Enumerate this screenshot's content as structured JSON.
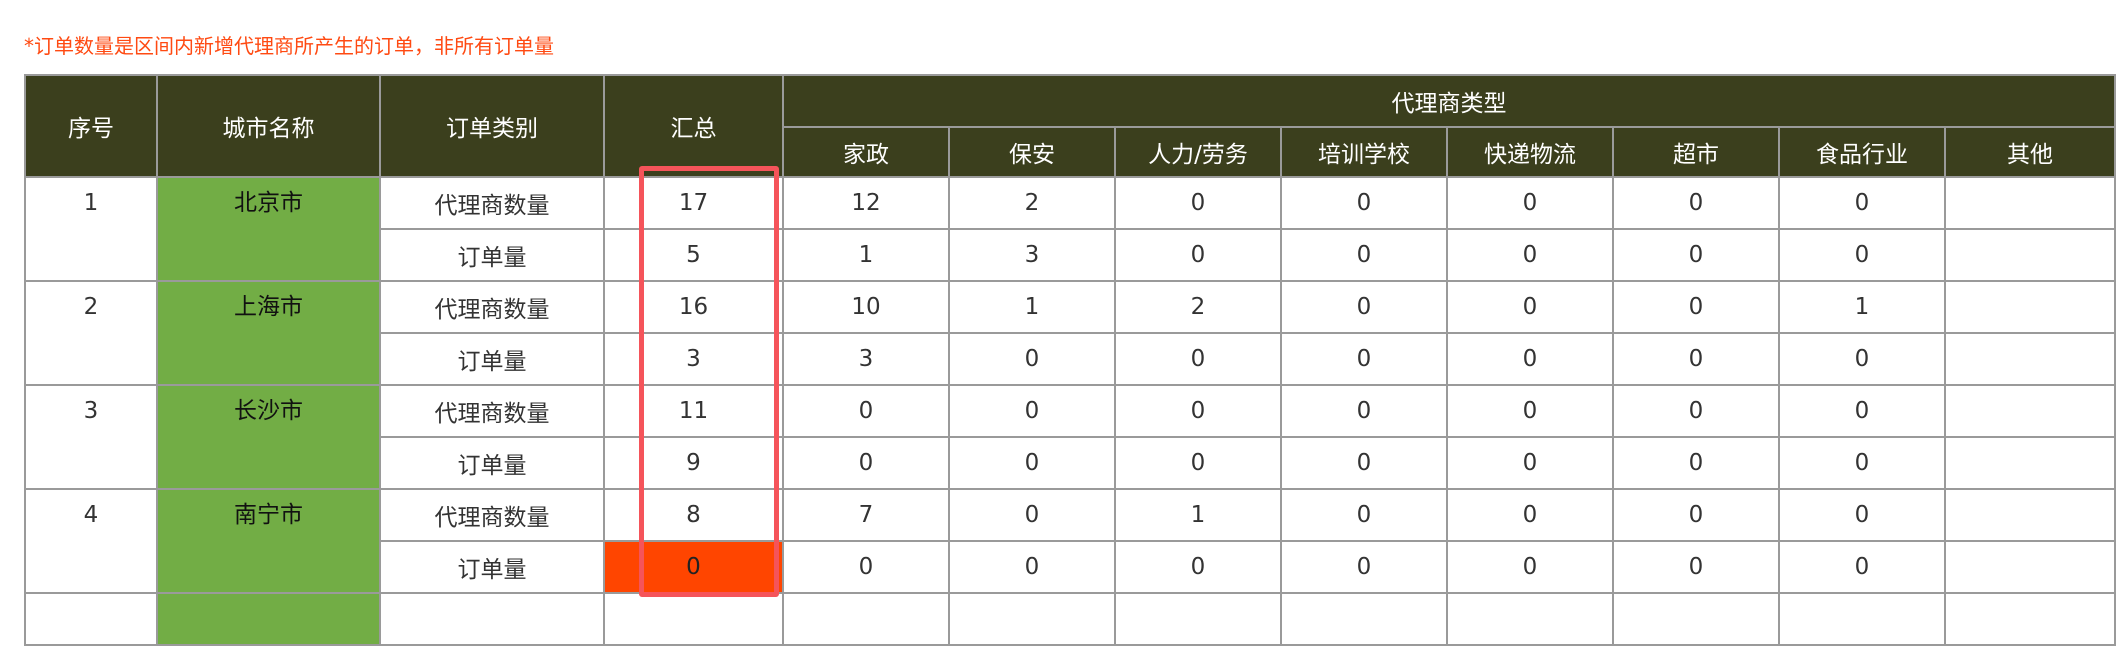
{
  "note": "*订单数量是区间内新增代理商所产生的订单，非所有订单量",
  "headers": {
    "seq": "序号",
    "city": "城市名称",
    "category": "订单类别",
    "total": "汇总",
    "group": "代理商类型",
    "types": [
      "家政",
      "保安",
      "人力/劳务",
      "培训学校",
      "快递物流",
      "超市",
      "食品行业",
      "其他"
    ]
  },
  "colors": {
    "header_bg": "#3b3f1d",
    "city_bg": "#72ad45",
    "alert_bg": "#ff4500",
    "highlight_border": "#f5545a",
    "note": "#ff4a12"
  },
  "rows": [
    {
      "seq": "1",
      "city": "北京市",
      "lines": [
        {
          "category": "代理商数量",
          "total": "17",
          "values": [
            "12",
            "2",
            "0",
            "0",
            "0",
            "0",
            "0",
            ""
          ]
        },
        {
          "category": "订单量",
          "total": "5",
          "values": [
            "1",
            "3",
            "0",
            "0",
            "0",
            "0",
            "0",
            ""
          ]
        }
      ]
    },
    {
      "seq": "2",
      "city": "上海市",
      "lines": [
        {
          "category": "代理商数量",
          "total": "16",
          "values": [
            "10",
            "1",
            "2",
            "0",
            "0",
            "0",
            "1",
            ""
          ]
        },
        {
          "category": "订单量",
          "total": "3",
          "values": [
            "3",
            "0",
            "0",
            "0",
            "0",
            "0",
            "0",
            ""
          ]
        }
      ]
    },
    {
      "seq": "3",
      "city": "长沙市",
      "lines": [
        {
          "category": "代理商数量",
          "total": "11",
          "values": [
            "0",
            "0",
            "0",
            "0",
            "0",
            "0",
            "0",
            ""
          ]
        },
        {
          "category": "订单量",
          "total": "9",
          "values": [
            "0",
            "0",
            "0",
            "0",
            "0",
            "0",
            "0",
            ""
          ]
        }
      ]
    },
    {
      "seq": "4",
      "city": "南宁市",
      "lines": [
        {
          "category": "代理商数量",
          "total": "8",
          "values": [
            "7",
            "0",
            "1",
            "0",
            "0",
            "0",
            "0",
            ""
          ]
        },
        {
          "category": "订单量",
          "total": "0",
          "values": [
            "0",
            "0",
            "0",
            "0",
            "0",
            "0",
            "0",
            ""
          ],
          "total_alert": true
        }
      ]
    }
  ]
}
